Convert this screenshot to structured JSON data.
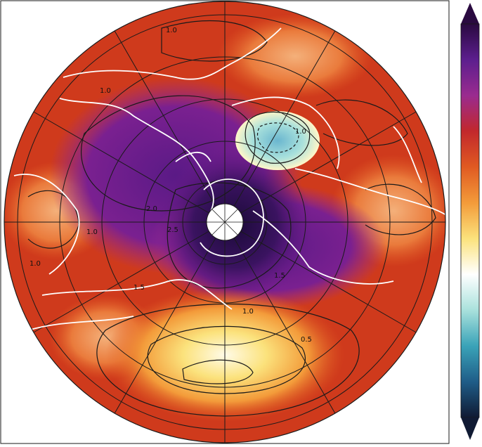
{
  "map": {
    "projection": "north-polar-stereographic",
    "contour_labels": [
      "1.0",
      "1.0",
      "1.0",
      "1.0",
      "1.0",
      "1.0",
      "1.5",
      "1.5",
      "2.0",
      "2.5",
      "0.5"
    ],
    "colors": {
      "land_outline": "#ffffff",
      "contour": "#1a1a1a",
      "graticule": "#1a1a1a",
      "background_field": "#cf3a1c",
      "strong_warm": "#6a1a8a",
      "very_strong_warm": "#1c0a3a",
      "weak_warm": "#f5c64a",
      "cool_anomaly": "#6fc6d0"
    }
  },
  "colorbar": {
    "extend": "both",
    "ticks_labeled": false,
    "stops": [
      "#2a0a40",
      "#5c1e8e",
      "#9a2b8f",
      "#c2282c",
      "#e05a22",
      "#f39b3a",
      "#fbe27c",
      "#ffffff",
      "#a9e1dc",
      "#3aa3b8",
      "#1f5d88",
      "#101a33"
    ]
  }
}
